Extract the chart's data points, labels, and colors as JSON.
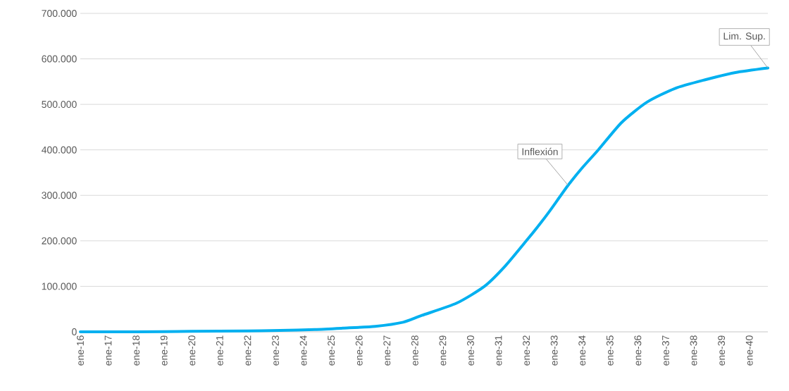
{
  "chart_data": {
    "type": "line",
    "x": [
      "2016-01",
      "2018-01",
      "2020-01",
      "2022-01",
      "2023-03",
      "2024-06",
      "2025-06",
      "2026-08",
      "2027-08",
      "2028-04",
      "2029-07",
      "2030-07",
      "2031-04",
      "2032-01",
      "2032-07",
      "2032-11",
      "2033-07",
      "2034-01",
      "2034-08",
      "2035-06",
      "2036-05",
      "2037-05",
      "2038-06",
      "2039-07",
      "2040-09"
    ],
    "series": [
      {
        "color": "#00b0f0",
        "values": [
          0,
          0,
          1000,
          2000,
          3000,
          5000,
          8000,
          12000,
          21000,
          36000,
          63000,
          100000,
          145000,
          200000,
          238000,
          265000,
          322000,
          360000,
          400000,
          460000,
          505000,
          535000,
          554000,
          570000,
          580000
        ]
      }
    ],
    "xlim": [
      "2016-01",
      "2040-09"
    ],
    "xticks": [
      {
        "value": "2016-01",
        "label": "ene-16"
      },
      {
        "value": "2017-01",
        "label": "ene-17"
      },
      {
        "value": "2018-01",
        "label": "ene-18"
      },
      {
        "value": "2019-01",
        "label": "ene-19"
      },
      {
        "value": "2020-01",
        "label": "ene-20"
      },
      {
        "value": "2021-01",
        "label": "ene-21"
      },
      {
        "value": "2022-01",
        "label": "ene-22"
      },
      {
        "value": "2023-01",
        "label": "ene-23"
      },
      {
        "value": "2024-01",
        "label": "ene-24"
      },
      {
        "value": "2025-01",
        "label": "ene-25"
      },
      {
        "value": "2026-01",
        "label": "ene-26"
      },
      {
        "value": "2027-01",
        "label": "ene-27"
      },
      {
        "value": "2028-01",
        "label": "ene-28"
      },
      {
        "value": "2029-01",
        "label": "ene-29"
      },
      {
        "value": "2030-01",
        "label": "ene-30"
      },
      {
        "value": "2031-01",
        "label": "ene-31"
      },
      {
        "value": "2032-01",
        "label": "ene-32"
      },
      {
        "value": "2033-01",
        "label": "ene-33"
      },
      {
        "value": "2034-01",
        "label": "ene-34"
      },
      {
        "value": "2035-01",
        "label": "ene-35"
      },
      {
        "value": "2036-01",
        "label": "ene-36"
      },
      {
        "value": "2037-01",
        "label": "ene-37"
      },
      {
        "value": "2038-01",
        "label": "ene-38"
      },
      {
        "value": "2039-01",
        "label": "ene-39"
      },
      {
        "value": "2040-01",
        "label": "ene-40"
      }
    ],
    "ylim": [
      0,
      700000
    ],
    "yticks": [
      {
        "value": 0,
        "label": "0"
      },
      {
        "value": 100000,
        "label": "100.000"
      },
      {
        "value": 200000,
        "label": "200.000"
      },
      {
        "value": 300000,
        "label": "300.000"
      },
      {
        "value": 400000,
        "label": "400.000"
      },
      {
        "value": 500000,
        "label": "500.000"
      },
      {
        "value": 600000,
        "label": "600.000"
      },
      {
        "value": 700000,
        "label": "700.000"
      }
    ],
    "grid": "y",
    "annotations": [
      {
        "text": "Inflexión",
        "x": "2033-07",
        "y": 322000
      },
      {
        "text": "Lim. Sup.",
        "x": "2040-09",
        "y": 580000
      }
    ]
  }
}
